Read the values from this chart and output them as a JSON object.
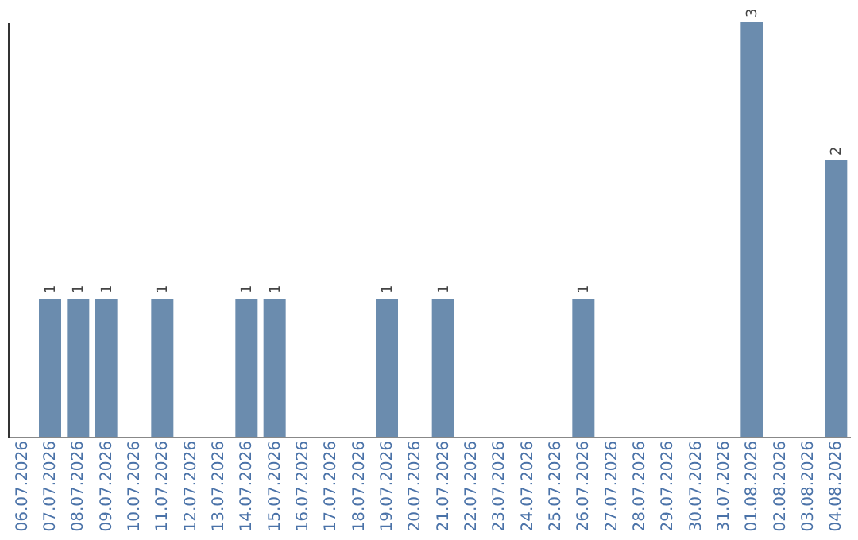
{
  "chart_data": {
    "type": "bar",
    "categories": [
      "06.07.2026",
      "07.07.2026",
      "08.07.2026",
      "09.07.2026",
      "10.07.2026",
      "11.07.2026",
      "12.07.2026",
      "13.07.2026",
      "14.07.2026",
      "15.07.2026",
      "16.07.2026",
      "17.07.2026",
      "18.07.2026",
      "19.07.2026",
      "20.07.2026",
      "21.07.2026",
      "22.07.2026",
      "23.07.2026",
      "24.07.2026",
      "25.07.2026",
      "26.07.2026",
      "27.07.2026",
      "28.07.2026",
      "29.07.2026",
      "30.07.2026",
      "31.07.2026",
      "01.08.2026",
      "02.08.2026",
      "03.08.2026",
      "04.08.2026"
    ],
    "values": [
      null,
      1,
      1,
      1,
      null,
      1,
      null,
      null,
      1,
      1,
      null,
      null,
      null,
      1,
      null,
      1,
      null,
      null,
      null,
      null,
      1,
      null,
      null,
      null,
      null,
      null,
      3,
      null,
      null,
      2
    ],
    "color": "#6b8cae",
    "data_labels": true,
    "tick_labels": "x",
    "grid": false
  }
}
